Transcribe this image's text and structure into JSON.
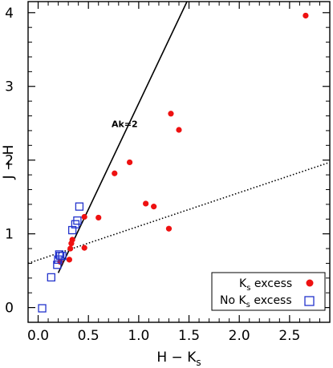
{
  "chart_data": {
    "type": "scatter",
    "xlabel": "H − K",
    "xlabel_sub": "s",
    "ylabel": "J − H",
    "xlim": [
      -0.1,
      2.9
    ],
    "ylim": [
      -0.2,
      4.15
    ],
    "x_ticks": [
      0.0,
      0.5,
      1.0,
      1.5,
      2.0,
      2.5
    ],
    "x_tick_labels": [
      "0.0",
      "0.5",
      "1.0",
      "1.5",
      "2.0",
      "2.5"
    ],
    "y_ticks": [
      0,
      1,
      2,
      3,
      4
    ],
    "y_tick_labels": [
      "0",
      "1",
      "2",
      "3",
      "4"
    ],
    "colors": {
      "ks_excess": "#ee1111",
      "no_excess": "#2233cc",
      "axes": "#000000"
    },
    "reddening_line": {
      "x": [
        0.2,
        1.48
      ],
      "y": [
        0.47,
        4.15
      ],
      "label": "Ak=2",
      "label_pos": [
        0.73,
        2.45
      ]
    },
    "ctts_locus": {
      "x": [
        -0.1,
        2.9
      ],
      "y": [
        0.6,
        1.97
      ],
      "style": "dotted"
    },
    "series": [
      {
        "name": "K excess",
        "name_sub": "s",
        "marker": "filled-circle",
        "points": [
          [
            0.22,
            0.62
          ],
          [
            0.31,
            0.65
          ],
          [
            0.32,
            0.8
          ],
          [
            0.33,
            0.87
          ],
          [
            0.34,
            0.92
          ],
          [
            0.46,
            0.81
          ],
          [
            0.46,
            1.23
          ],
          [
            0.6,
            1.22
          ],
          [
            0.76,
            1.82
          ],
          [
            0.91,
            1.97
          ],
          [
            1.07,
            1.41
          ],
          [
            1.15,
            1.37
          ],
          [
            1.3,
            1.07
          ],
          [
            1.32,
            2.63
          ],
          [
            1.4,
            2.41
          ],
          [
            2.66,
            3.96
          ]
        ]
      },
      {
        "name": "No K excess",
        "name_sub": "s",
        "marker": "open-square",
        "points": [
          [
            0.04,
            -0.01
          ],
          [
            0.13,
            0.41
          ],
          [
            0.19,
            0.58
          ],
          [
            0.2,
            0.65
          ],
          [
            0.21,
            0.72
          ],
          [
            0.22,
            0.7
          ],
          [
            0.24,
            0.7
          ],
          [
            0.34,
            1.05
          ],
          [
            0.37,
            1.13
          ],
          [
            0.39,
            1.18
          ],
          [
            0.41,
            1.37
          ]
        ]
      }
    ],
    "legend_position": "bottom-right"
  }
}
